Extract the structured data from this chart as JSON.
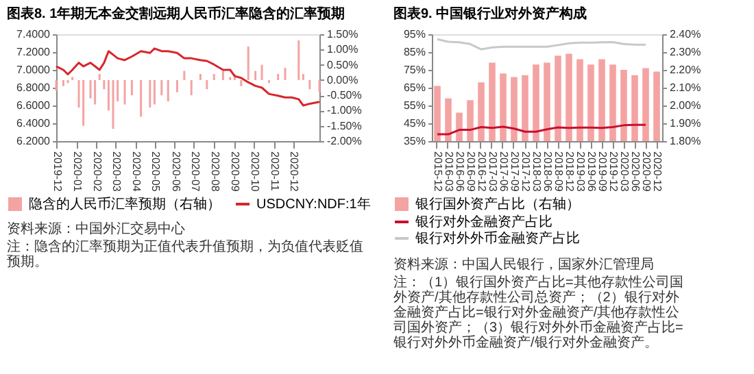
{
  "chart_data": [
    {
      "type": "line",
      "title": "图表8. 1年期无本金交割远期人民币汇率隐含的汇率预期",
      "x": [
        "2019-12-01",
        "2019-12-12",
        "2019-12-19",
        "2019-12-26",
        "2020-01-05",
        "2020-01-12",
        "2020-01-23",
        "2020-01-30",
        "2020-02-06",
        "2020-02-13",
        "2020-02-20",
        "2020-02-27",
        "2020-03-05",
        "2020-03-16",
        "2020-03-27",
        "2020-04-10",
        "2020-04-24",
        "2020-05-01",
        "2020-05-12",
        "2020-05-22",
        "2020-06-05",
        "2020-06-16",
        "2020-06-27",
        "2020-07-11",
        "2020-07-21",
        "2020-08-01",
        "2020-08-15",
        "2020-08-26",
        "2020-09-02",
        "2020-09-12",
        "2020-09-23",
        "2020-10-04",
        "2020-10-14",
        "2020-10-25",
        "2020-11-08",
        "2020-11-19",
        "2020-11-29",
        "2020-12-10",
        "2020-12-17",
        "2020-12-27",
        "2021-01-11"
      ],
      "series": [
        {
          "name": "隐含的人民币汇率预期（右轴）",
          "type": "bar",
          "axis": "y2",
          "color": "#f4a3a3",
          "values": [
            -0.35,
            -0.2,
            -0.1,
            0.1,
            -0.9,
            -1.5,
            -0.6,
            -0.8,
            0.2,
            -0.3,
            -1.0,
            -1.6,
            -0.7,
            -0.8,
            -0.5,
            -1.2,
            -0.9,
            -0.8,
            -0.5,
            -0.7,
            -0.4,
            0.3,
            -0.5,
            0.2,
            -0.3,
            0.2,
            0.3,
            0.1,
            0.2,
            -0.2,
            1.1,
            0.3,
            0.5,
            -0.1,
            0.2,
            0.4,
            0.0,
            1.3,
            0.2,
            -0.3,
            -0.4
          ]
        },
        {
          "name": "USDCNY:NDF:1年",
          "color": "#d7262b",
          "values": [
            7.04,
            7.0,
            6.95,
            7.0,
            7.08,
            7.04,
            7.08,
            7.04,
            7.0,
            7.08,
            7.21,
            7.17,
            7.13,
            7.11,
            7.15,
            7.21,
            7.19,
            7.24,
            7.21,
            7.21,
            7.19,
            7.13,
            7.13,
            7.11,
            7.1,
            7.06,
            7.0,
            7.0,
            6.93,
            6.91,
            6.86,
            6.82,
            6.8,
            6.73,
            6.71,
            6.69,
            6.69,
            6.67,
            6.6,
            6.62,
            6.64
          ]
        }
      ],
      "xlim": [
        "2019-12-01",
        "2021-01-11"
      ],
      "xticks": [
        "2019-12",
        "2020-01",
        "2020-02",
        "2020-03",
        "2020-04",
        "2020-05",
        "2020-06",
        "2020-07",
        "2020-08",
        "2020-09",
        "2020-10",
        "2020-11",
        "2020-12"
      ],
      "ylim": [
        6.2,
        7.4
      ],
      "yticks": [
        {
          "value": 6.2,
          "label": "6.2000"
        },
        {
          "value": 6.4,
          "label": "6.4000"
        },
        {
          "value": 6.6,
          "label": "6.6000"
        },
        {
          "value": 6.8,
          "label": "6.8000"
        },
        {
          "value": 7.0,
          "label": "7.0000"
        },
        {
          "value": 7.2,
          "label": "7.2000"
        },
        {
          "value": 7.4,
          "label": "7.4000"
        }
      ],
      "y2lim": [
        -2,
        1.5
      ],
      "y2ticks": [
        {
          "value": -2,
          "label": "-2.00%"
        },
        {
          "value": -1.5,
          "label": "-1.50%"
        },
        {
          "value": -1,
          "label": "-1.00%"
        },
        {
          "value": -0.5,
          "label": "-0.50%"
        },
        {
          "value": 0,
          "label": "0.00%"
        },
        {
          "value": 0.5,
          "label": "0.50%"
        },
        {
          "value": 1,
          "label": "1.00%"
        },
        {
          "value": 1.5,
          "label": "1.50%"
        }
      ],
      "legend": "bottom",
      "annotations": [
        "资料来源：中国外汇交易中心",
        "注：隐含的汇率预期为正值代表升值预期，为负值代表贬值预期。"
      ]
    },
    {
      "type": "bar",
      "title": "图表9. 中国银行业对外资产构成",
      "categories": [
        "2015-12",
        "2016-03",
        "2016-06",
        "2016-09",
        "2016-12",
        "2017-03",
        "2017-06",
        "2017-09",
        "2017-12",
        "2018-03",
        "2018-06",
        "2018-09",
        "2018-12",
        "2019-03",
        "2019-06",
        "2019-09",
        "2019-12",
        "2020-03",
        "2020-06",
        "2020-09",
        "2020-12"
      ],
      "series": [
        {
          "name": "银行国外资产占比（右轴）",
          "axis": "y2",
          "color": "#f4a3a3",
          "values": [
            2.11,
            2.04,
            1.96,
            2.03,
            2.13,
            2.24,
            2.18,
            2.16,
            2.17,
            2.23,
            2.24,
            2.28,
            2.29,
            2.26,
            2.23,
            2.26,
            2.23,
            2.2,
            2.17,
            2.21,
            2.19
          ]
        },
        {
          "name": "银行对外金融资产占比",
          "type": "line",
          "color": "#c8102e",
          "values": [
            38.8,
            38.8,
            41.3,
            41.3,
            42.9,
            42.4,
            43.1,
            42.0,
            40.3,
            40.3,
            41.6,
            42.7,
            42.4,
            42.6,
            42.6,
            42.4,
            42.9,
            43.9,
            44.1,
            44.1,
            null
          ]
        },
        {
          "name": "银行对外外币金融资产占比",
          "type": "line",
          "color": "#c8c8c8",
          "values": [
            92.2,
            90.8,
            90.5,
            89.5,
            86.5,
            87.6,
            88.0,
            88.0,
            88.0,
            88.0,
            88.0,
            88.9,
            89.9,
            90.3,
            90.3,
            90.5,
            90.6,
            89.5,
            89.1,
            89.1,
            null
          ]
        }
      ],
      "ylim": [
        35,
        95
      ],
      "yticks": [
        {
          "value": 35,
          "label": "35%"
        },
        {
          "value": 45,
          "label": "45%"
        },
        {
          "value": 55,
          "label": "55%"
        },
        {
          "value": 65,
          "label": "65%"
        },
        {
          "value": 75,
          "label": "75%"
        },
        {
          "value": 85,
          "label": "85%"
        },
        {
          "value": 95,
          "label": "95%"
        }
      ],
      "y2lim": [
        1.8,
        2.4
      ],
      "y2ticks": [
        {
          "value": 1.8,
          "label": "1.80%"
        },
        {
          "value": 1.9,
          "label": "1.90%"
        },
        {
          "value": 2.0,
          "label": "2.00%"
        },
        {
          "value": 2.1,
          "label": "2.10%"
        },
        {
          "value": 2.2,
          "label": "2.20%"
        },
        {
          "value": 2.3,
          "label": "2.30%"
        },
        {
          "value": 2.4,
          "label": "2.40%"
        }
      ],
      "legend": "bottom",
      "annotations": [
        "资料来源：中国人民银行，国家外汇管理局",
        "注：（1）银行国外资产占比=其他存款性公司国外资产/其他存款性公司总资产；（2）银行对外金融资产占比=银行对外金融资产/其他存款性公司国外资产；（3）银行对外外币金融资产占比=银行对外外币金融资产/银行对外金融资产。"
      ]
    }
  ]
}
